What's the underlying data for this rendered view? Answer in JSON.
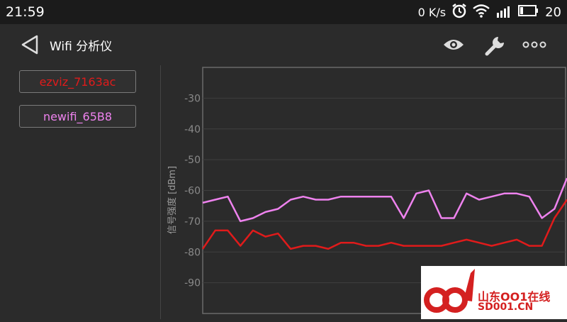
{
  "status_bar": {
    "time": "21:59",
    "speed": "0 K/s",
    "battery_level": "20",
    "icons": [
      "alarm-icon",
      "wifi-icon",
      "cellular-4g-icon",
      "battery-icon"
    ]
  },
  "app_bar": {
    "title": "Wifi 分析仪",
    "icons": [
      "back-icon",
      "eye-icon",
      "wrench-icon",
      "more-icon"
    ]
  },
  "networks": [
    {
      "ssid": "ezviz_7163ac",
      "color": "#e01b1b"
    },
    {
      "ssid": "newifi_65B8",
      "color": "#ee82ee"
    }
  ],
  "chart_data": {
    "type": "line",
    "ylabel": "信号强度 [dBm]",
    "ylim": [
      -100,
      -20
    ],
    "yticks": [
      "-30",
      "-40",
      "-50",
      "-60",
      "-70",
      "-80",
      "-90"
    ],
    "grid": "horizontal",
    "series": [
      {
        "name": "ezviz_7163ac",
        "color": "#e01b1b",
        "values": [
          -79,
          -73,
          -73,
          -78,
          -73,
          -75,
          -74,
          -79,
          -78,
          -78,
          -79,
          -77,
          -77,
          -78,
          -78,
          -77,
          -78,
          -78,
          -78,
          -78,
          -77,
          -76,
          -77,
          -78,
          -77,
          -76,
          -78,
          -78,
          -69,
          -63
        ]
      },
      {
        "name": "newifi_65B8",
        "color": "#ee82ee",
        "values": [
          -64,
          -63,
          -62,
          -70,
          -69,
          -67,
          -66,
          -63,
          -62,
          -63,
          -63,
          -62,
          -62,
          -62,
          -62,
          -62,
          -69,
          -61,
          -60,
          -69,
          -69,
          -61,
          -63,
          -62,
          -61,
          -61,
          -62,
          -69,
          -66,
          -56
        ]
      }
    ]
  },
  "watermark": {
    "line1": "山东OO1在线",
    "line2": "SD001.CN"
  }
}
